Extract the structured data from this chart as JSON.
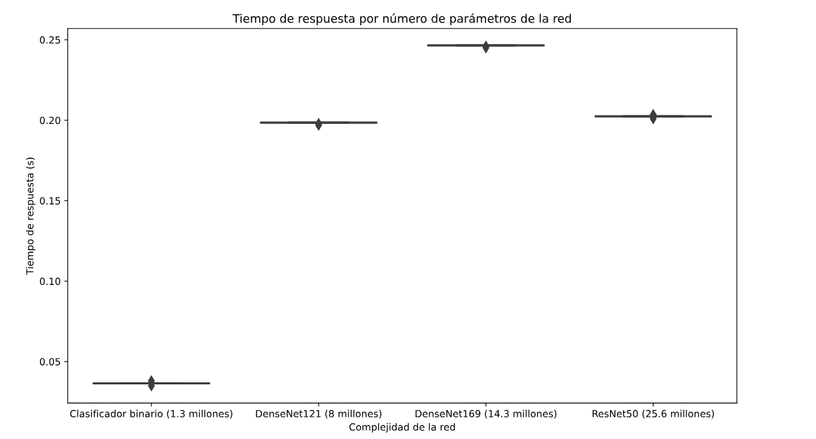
{
  "chart_data": {
    "type": "box",
    "title": "Tiempo de respuesta por número de parámetros de la red",
    "xlabel": "Complejidad de la red",
    "ylabel": "Tiempo de respuesta (s)",
    "categories": [
      "Clasificador binario (1.3 millones)",
      "DenseNet121 (8 millones)",
      "DenseNet169 (14.3 millones)",
      "ResNet50 (25.6 millones)"
    ],
    "boxes": [
      {
        "low": 0.0365,
        "q1": 0.0365,
        "median": 0.0365,
        "q3": 0.0365,
        "high": 0.0365,
        "outliers": [
          0.035,
          0.038
        ]
      },
      {
        "low": 0.1985,
        "q1": 0.1985,
        "median": 0.1985,
        "q3": 0.1985,
        "high": 0.1985,
        "outliers": [
          0.197,
          0.198
        ]
      },
      {
        "low": 0.2465,
        "q1": 0.2465,
        "median": 0.2465,
        "q3": 0.2465,
        "high": 0.2465,
        "outliers": [
          0.245,
          0.246
        ]
      },
      {
        "low": 0.2025,
        "q1": 0.2025,
        "median": 0.2025,
        "q3": 0.2025,
        "high": 0.2025,
        "outliers": [
          0.201,
          0.2035
        ]
      }
    ],
    "color": "#3d3d3d",
    "marker": "diamond",
    "grid": false,
    "ylim": [
      0.0243,
      0.257
    ],
    "yticks": [
      {
        "value": 0.05,
        "label": "0.05"
      },
      {
        "value": 0.1,
        "label": "0.10"
      },
      {
        "value": 0.15,
        "label": "0.15"
      },
      {
        "value": 0.2,
        "label": "0.20"
      },
      {
        "value": 0.25,
        "label": "0.25"
      }
    ]
  }
}
